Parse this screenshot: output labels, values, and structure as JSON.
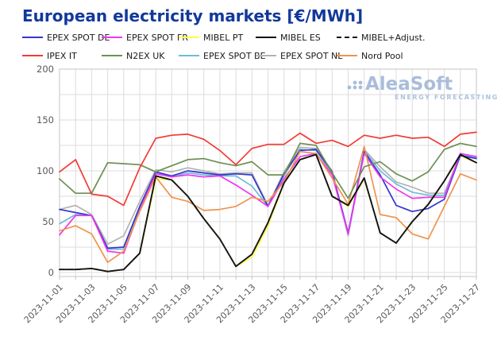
{
  "title": "European electricity markets [€/MWh]",
  "watermark": {
    "name": "AleaSoft",
    "tagline": "ENERGY FORECASTING",
    "color": "#a9bdda"
  },
  "legend": {
    "rows": [
      [
        0,
        1,
        2,
        3,
        4
      ],
      [
        5,
        6,
        7,
        8,
        9
      ]
    ]
  },
  "chart_data": {
    "type": "line",
    "title": "European electricity markets [€/MWh]",
    "xlabel": "",
    "ylabel": "",
    "ylim": [
      0,
      200
    ],
    "y_ticks": [
      0,
      50,
      100,
      150,
      200
    ],
    "grid": true,
    "grid_step": 25,
    "grid_color": "#dcdcdc",
    "box_color": "#c4c4c4",
    "tick_text_color": "#595959",
    "legend_position": "top",
    "x": [
      "2023-11-01",
      "2023-11-02",
      "2023-11-03",
      "2023-11-04",
      "2023-11-05",
      "2023-11-06",
      "2023-11-07",
      "2023-11-08",
      "2023-11-09",
      "2023-11-10",
      "2023-11-11",
      "2023-11-12",
      "2023-11-13",
      "2023-11-14",
      "2023-11-15",
      "2023-11-16",
      "2023-11-17",
      "2023-11-18",
      "2023-11-19",
      "2023-11-20",
      "2023-11-21",
      "2023-11-22",
      "2023-11-23",
      "2023-11-24",
      "2023-11-25",
      "2023-11-26",
      "2023-11-27"
    ],
    "x_tick_labels": [
      "2023-11-01",
      "2023-11-03",
      "2023-11-05",
      "2023-11-07",
      "2023-11-09",
      "2023-11-11",
      "2023-11-13",
      "2023-11-15",
      "2023-11-17",
      "2023-11-19",
      "2023-11-21",
      "2023-11-23",
      "2023-11-25",
      "2023-11-27"
    ],
    "x_tick_step": 2,
    "series": [
      {
        "name": "EPEX SPOT DE",
        "slug": "epex-spot-de",
        "color": "#3535cd",
        "dash": "solid",
        "values": [
          62,
          59,
          56,
          24,
          25,
          65,
          99,
          95,
          100,
          98,
          96,
          97,
          96,
          65,
          97,
          120,
          121,
          99,
          39,
          119,
          96,
          66,
          60,
          63,
          72,
          115,
          112
        ]
      },
      {
        "name": "EPEX SPOT FR",
        "slug": "epex-spot-fr",
        "color": "#f135f1",
        "dash": "solid",
        "values": [
          37,
          56,
          56,
          21,
          19,
          61,
          97,
          94,
          96,
          94,
          95,
          86,
          76,
          65,
          92,
          114,
          117,
          96,
          38,
          117,
          94,
          82,
          73,
          74,
          74,
          117,
          114
        ]
      },
      {
        "name": "MIBEL PT",
        "slug": "mibel-pt",
        "color": "#ffff3d",
        "dash": "solid",
        "values": [
          3,
          3,
          4,
          1,
          3,
          19,
          92,
          91,
          75,
          53,
          33,
          6,
          15,
          46,
          88,
          111,
          116,
          75,
          65,
          92,
          39,
          29,
          50,
          67,
          90,
          115,
          108
        ]
      },
      {
        "name": "MIBEL ES",
        "slug": "mibel-es",
        "color": "#141414",
        "dash": "solid",
        "values": [
          3,
          3,
          4,
          1,
          3,
          19,
          95,
          91,
          75,
          53,
          33,
          6,
          18,
          49,
          88,
          111,
          116,
          75,
          66,
          93,
          39,
          29,
          50,
          67,
          90,
          116,
          108
        ]
      },
      {
        "name": "MIBEL+Adjust.",
        "slug": "mibel-adjust",
        "color": "#141414",
        "dash": "dashed",
        "values": [
          3,
          3,
          4,
          1,
          3,
          19,
          95,
          91,
          75,
          53,
          33,
          6,
          18,
          49,
          88,
          111,
          116,
          75,
          66,
          93,
          39,
          29,
          50,
          67,
          90,
          116,
          108
        ]
      },
      {
        "name": "IPEX IT",
        "slug": "ipex-it",
        "color": "#f23b35",
        "dash": "solid",
        "values": [
          99,
          111,
          77,
          75,
          66,
          103,
          132,
          135,
          136,
          131,
          120,
          106,
          122,
          126,
          126,
          137,
          127,
          130,
          124,
          135,
          132,
          135,
          132,
          133,
          124,
          136,
          138
        ]
      },
      {
        "name": "N2EX UK",
        "slug": "n2ex-uk",
        "color": "#6e8f54",
        "dash": "solid",
        "values": [
          92,
          78,
          78,
          108,
          107,
          106,
          99,
          105,
          111,
          112,
          108,
          105,
          109,
          96,
          96,
          127,
          125,
          98,
          73,
          104,
          109,
          97,
          90,
          99,
          121,
          127,
          124
        ]
      },
      {
        "name": "EPEX SPOT BE",
        "slug": "epex-spot-be",
        "color": "#6dbcd8",
        "dash": "solid",
        "values": [
          48,
          57,
          56,
          23,
          23,
          63,
          98,
          94,
          98,
          96,
          95,
          95,
          85,
          65,
          95,
          121,
          120,
          98,
          38,
          120,
          100,
          87,
          79,
          76,
          76,
          116,
          113
        ]
      },
      {
        "name": "EPEX SPOT NL",
        "slug": "epex-spot-nl",
        "color": "#b3b3b3",
        "dash": "solid",
        "values": [
          62,
          66,
          57,
          28,
          36,
          70,
          101,
          99,
          103,
          100,
          97,
          98,
          98,
          66,
          99,
          123,
          122,
          100,
          36,
          121,
          104,
          89,
          84,
          78,
          78,
          116,
          113
        ]
      },
      {
        "name": "Nord Pool",
        "slug": "nord-pool",
        "color": "#f0934e",
        "dash": "solid",
        "values": [
          41,
          46,
          38,
          10,
          21,
          60,
          94,
          74,
          70,
          61,
          62,
          65,
          74,
          70,
          89,
          119,
          117,
          93,
          67,
          124,
          57,
          54,
          38,
          33,
          65,
          97,
          91
        ]
      }
    ],
    "draw_order": [
      2,
      8,
      7,
      0,
      1,
      9,
      6,
      5,
      3,
      4
    ]
  }
}
